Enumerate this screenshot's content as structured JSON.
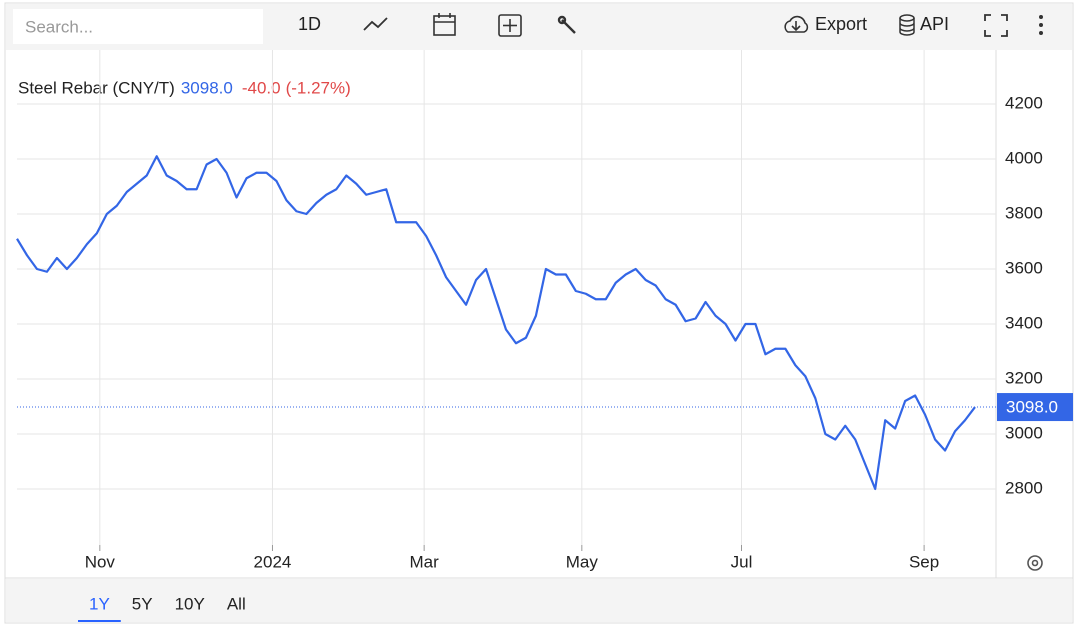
{
  "toolbar": {
    "search_placeholder": "Search...",
    "interval": "1D",
    "export": "Export",
    "api": "API"
  },
  "ranges": [
    "1Y",
    "5Y",
    "10Y",
    "All"
  ],
  "chart_data": {
    "type": "line",
    "title": "Steel Rebar (CNY/T)",
    "last_price_label": "3098.0",
    "change": "-40.0",
    "change_percent": "(-1.27%)",
    "change_color": "#e04848",
    "price_color": "#3366e6",
    "series": [
      {
        "name": "Steel Rebar",
        "color": "#3366e6",
        "values": [
          3710,
          3650,
          3600,
          3590,
          3640,
          3600,
          3640,
          3690,
          3730,
          3800,
          3830,
          3880,
          3910,
          3940,
          4010,
          3940,
          3920,
          3890,
          3890,
          3980,
          4000,
          3950,
          3860,
          3930,
          3950,
          3950,
          3920,
          3850,
          3810,
          3800,
          3840,
          3870,
          3890,
          3940,
          3910,
          3870,
          3880,
          3890,
          3770,
          3770,
          3770,
          3720,
          3650,
          3570,
          3520,
          3470,
          3560,
          3600,
          3490,
          3380,
          3330,
          3350,
          3430,
          3600,
          3580,
          3580,
          3520,
          3510,
          3490,
          3490,
          3550,
          3580,
          3600,
          3560,
          3540,
          3490,
          3470,
          3410,
          3420,
          3480,
          3430,
          3400,
          3340,
          3400,
          3400,
          3290,
          3310,
          3310,
          3250,
          3210,
          3130,
          3000,
          2980,
          3030,
          2980,
          2890,
          2800,
          3050,
          3020,
          3120,
          3140,
          3070,
          2980,
          2940,
          3010,
          3050,
          3098
        ]
      }
    ],
    "xlim": [
      0,
      96
    ],
    "xticks": [
      {
        "value": 8.3,
        "label": "Nov"
      },
      {
        "value": 25.6,
        "label": "2024"
      },
      {
        "value": 40.8,
        "label": "Mar"
      },
      {
        "value": 56.6,
        "label": "May"
      },
      {
        "value": 72.6,
        "label": "Jul"
      },
      {
        "value": 90.9,
        "label": "Sep"
      }
    ],
    "ylim": [
      2600,
      4400
    ],
    "yticks": [
      2800,
      3000,
      3200,
      3400,
      3600,
      3800,
      4000,
      4200
    ],
    "grid": true
  }
}
